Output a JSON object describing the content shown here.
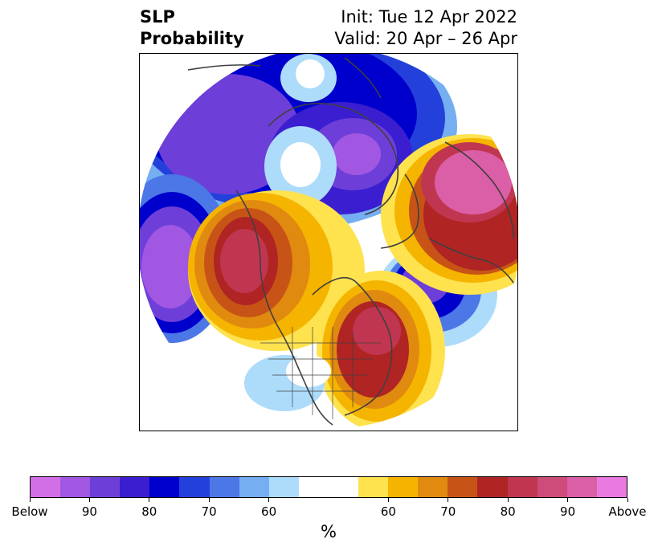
{
  "title": {
    "left_line1": "SLP",
    "left_line2": "Probability",
    "right_line1": "Init: Tue 12 Apr 2022",
    "right_line2": "Valid: 20 Apr – 26 Apr"
  },
  "colorbar": {
    "unit": "%",
    "below_colors": [
      "#d36fe6",
      "#a157e2",
      "#6e3fd8",
      "#3a1ed0",
      "#0000cd",
      "#2440da",
      "#4c77e6",
      "#75aef1",
      "#addcfb"
    ],
    "neutral_color": "#ffffff",
    "above_colors": [
      "#fee24e",
      "#f5b400",
      "#e08a10",
      "#c75416",
      "#b02424",
      "#c03650",
      "#cd4c7a",
      "#db5fa6",
      "#e97ae0"
    ],
    "tick_labels": [
      "Below",
      "90",
      "80",
      "70",
      "60",
      "60",
      "70",
      "80",
      "90",
      "Above"
    ]
  },
  "colors": {
    "coastline": "#404040",
    "frame": "#000000"
  }
}
